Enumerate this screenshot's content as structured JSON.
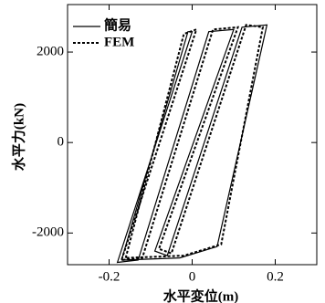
{
  "chart_data": {
    "type": "line",
    "xlabel": "水平変位(m)",
    "ylabel": "水平力(kN)",
    "xlim": [
      -0.3,
      0.3
    ],
    "xticks": [
      -0.2,
      0,
      0.2
    ],
    "ylim": [
      -2700,
      3050
    ],
    "yticks": [
      -2000,
      0,
      2000
    ],
    "legend": "upper left",
    "series": [
      {
        "name": "簡易",
        "color": "#000000",
        "dash": false,
        "x": [
          -0.17,
          -0.01,
          0.0,
          -0.18,
          -0.13,
          0.04,
          0.1,
          -0.09,
          -0.06,
          0.12,
          0.18,
          0.06,
          -0.03,
          -0.17
        ],
        "values": [
          -2600,
          2450,
          2450,
          -2650,
          -2600,
          2450,
          2500,
          -2400,
          -2500,
          2550,
          2600,
          -2300,
          -2550,
          -2600
        ]
      },
      {
        "name": "FEM",
        "color": "#000000",
        "dash": true,
        "x": [
          -0.16,
          -0.02,
          0.01,
          -0.17,
          -0.12,
          0.05,
          0.11,
          -0.08,
          -0.05,
          0.13,
          0.17,
          0.07,
          -0.02,
          -0.16
        ],
        "values": [
          -2550,
          2400,
          2500,
          -2600,
          -2550,
          2500,
          2550,
          -2350,
          -2450,
          2600,
          2550,
          -2250,
          -2500,
          -2550
        ]
      }
    ]
  }
}
